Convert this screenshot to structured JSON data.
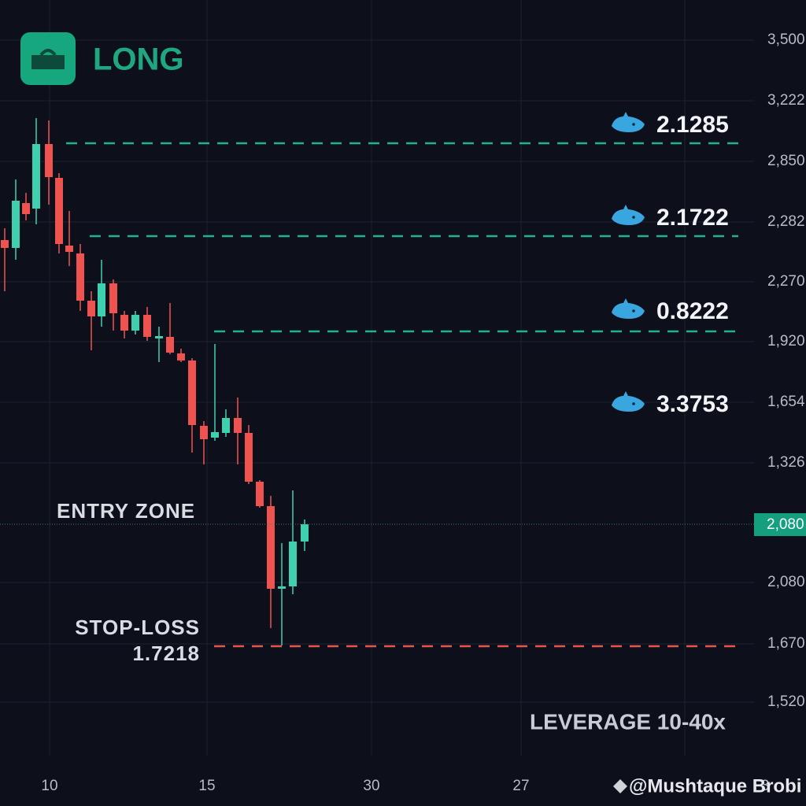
{
  "header": {
    "badge": "LONG"
  },
  "targets": [
    "2.1285",
    "2.1722",
    "0.8222",
    "3.3753"
  ],
  "entry_zone": "ENTRY  ZONE",
  "stop_loss": {
    "label": "STOP-LOSS",
    "value": "1.7218"
  },
  "leverage": "LEVERAGE  10-40x",
  "y_axis": [
    "3,500",
    "3,222",
    "2,850",
    "2,282",
    "2,270",
    "1,920",
    "1,654",
    "1,326",
    "2,080",
    "1,670",
    "1,520"
  ],
  "price_tag": "2,080",
  "x_axis": [
    "10",
    "15",
    "30",
    "27",
    "3"
  ],
  "watermark": "@Mushtaque Brobi"
}
